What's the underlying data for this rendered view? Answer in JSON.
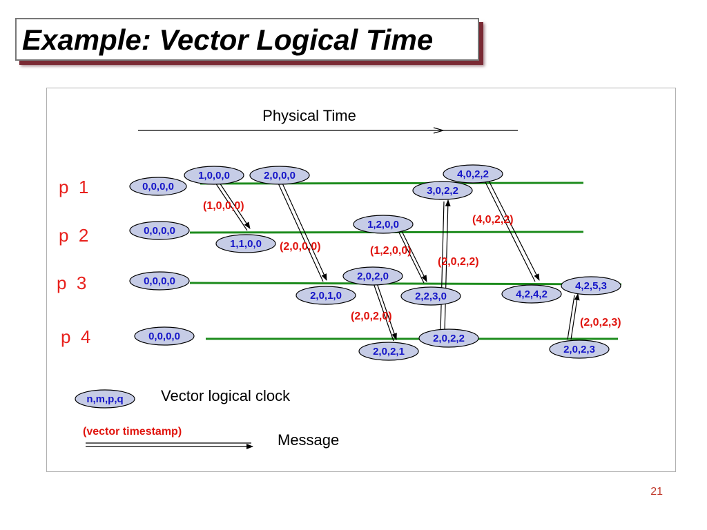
{
  "slide": {
    "title": "Example: Vector Logical Time",
    "page_number": "21"
  },
  "diagram": {
    "physical_time_label": "Physical Time",
    "processes": [
      "p  1",
      "p  2",
      "p  3",
      "p  4"
    ],
    "clocks": [
      "0,0,0,0",
      "1,0,0,0",
      "2,0,0,0",
      "3,0,2,2",
      "4,0,2,2",
      "0,0,0,0",
      "1,1,0,0",
      "1,2,0,0",
      "0,0,0,0",
      "2,0,1,0",
      "2,0,2,0",
      "2,2,3,0",
      "4,2,4,2",
      "4,2,5,3",
      "0,0,0,0",
      "2,0,2,1",
      "2,0,2,2",
      "2,0,2,3"
    ],
    "timestamps": [
      "(1,0,0,0)",
      "(2,0,0,0)",
      "(1,2,0,0)",
      "(2,0,2,2)",
      "(4,0,2,2)",
      "(2,0,2,0)",
      "(2,0,2,3)"
    ],
    "legend": {
      "clock_example": "n,m,p,q",
      "clock_label": "Vector logical clock",
      "timestamp_label": "(vector timestamp)",
      "message_label": "Message"
    },
    "colors": {
      "timeline": "#1e8c1e",
      "clock_fill": "#c6cce6",
      "clock_text": "#1515c8",
      "timestamp_text": "#e0140e",
      "process_text": "#e8201c"
    }
  }
}
